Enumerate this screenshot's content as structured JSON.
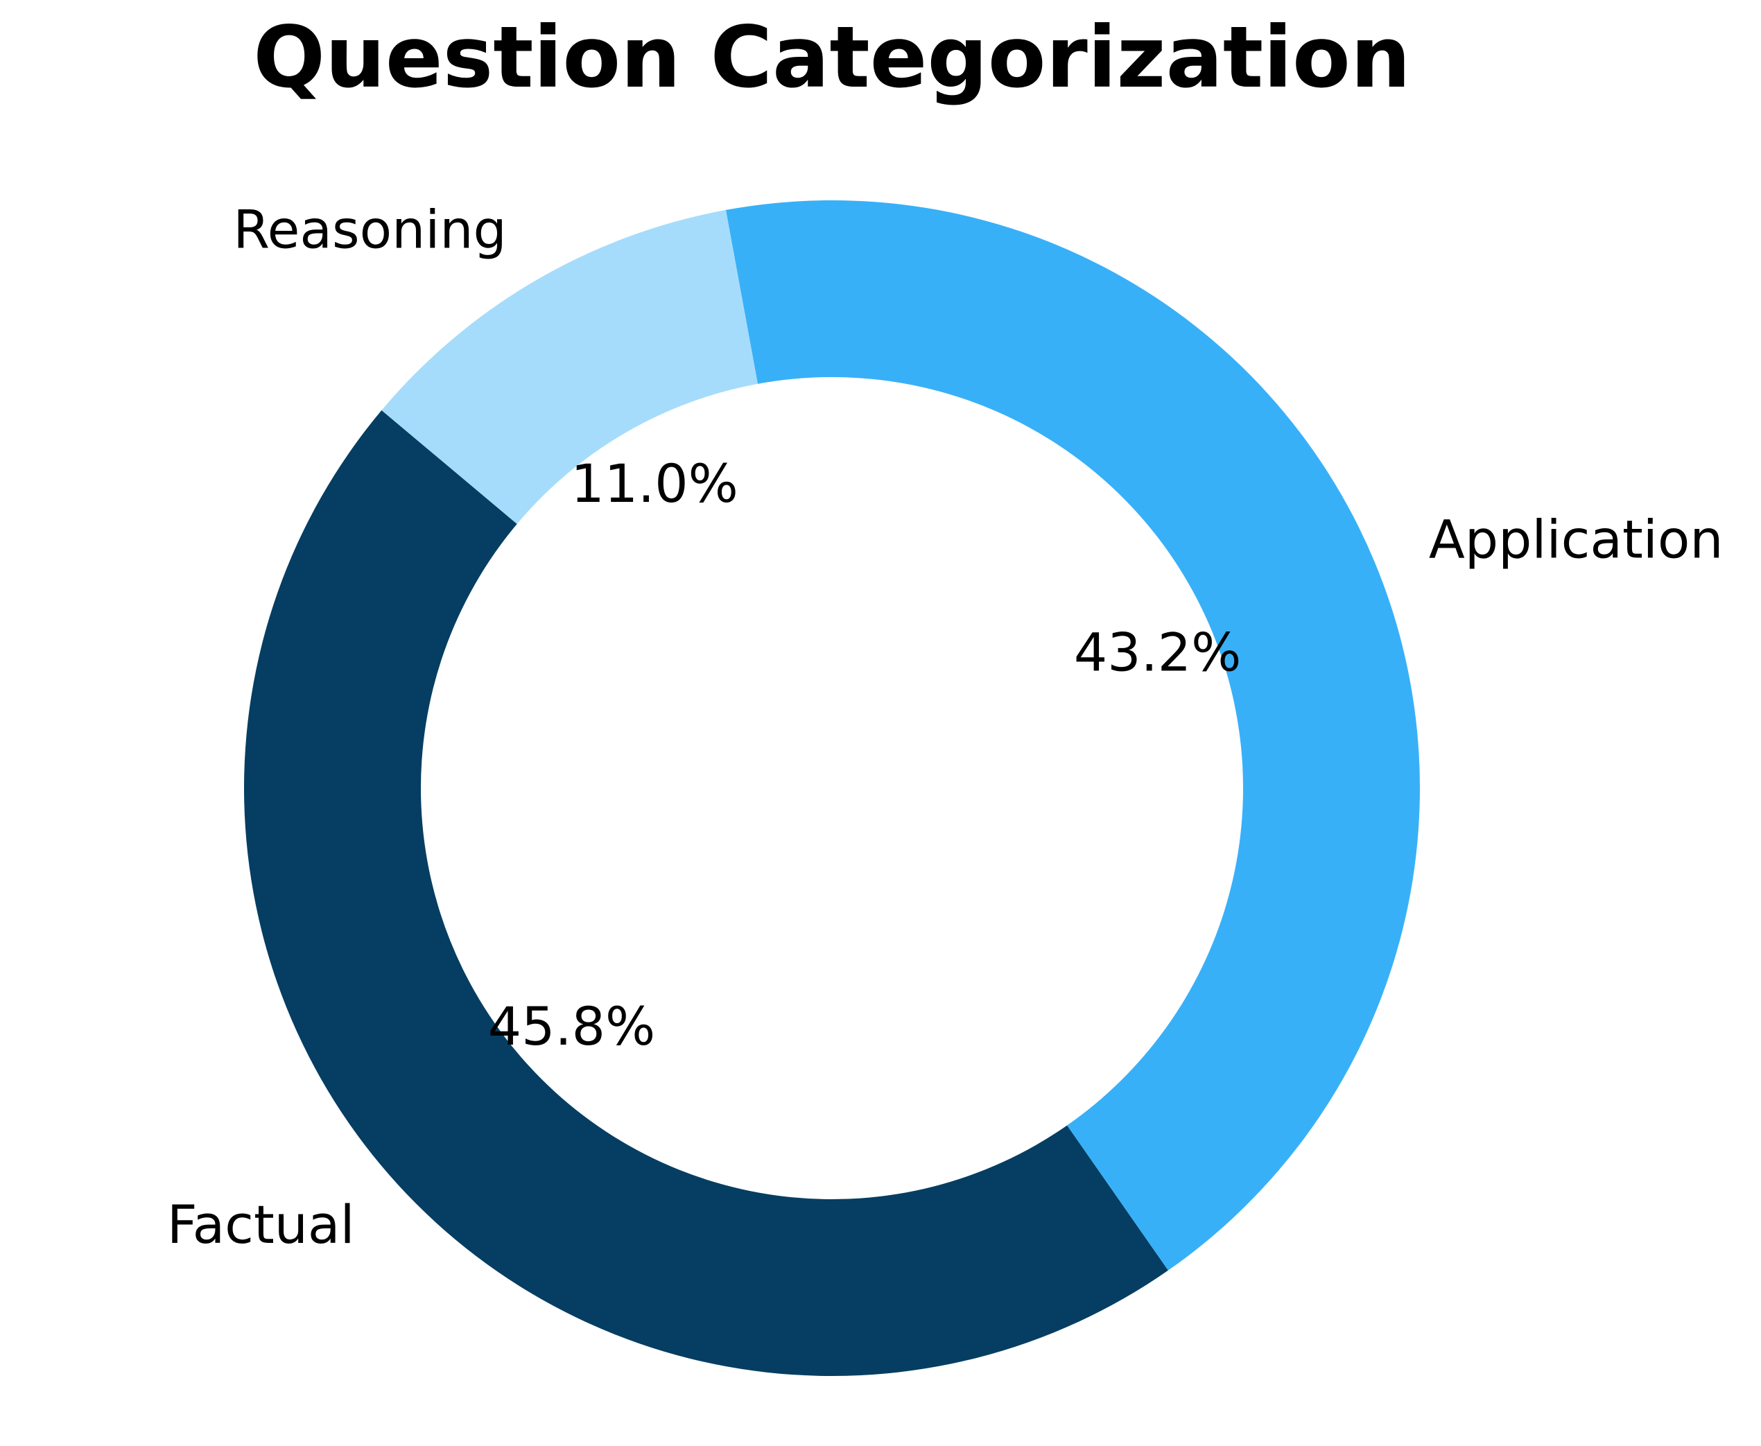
{
  "chart_data": {
    "type": "pie",
    "style": "donut",
    "title": "Question Categorization",
    "categories": [
      "Factual",
      "Application",
      "Reasoning"
    ],
    "values": [
      45.8,
      43.2,
      11.0
    ],
    "value_labels": [
      "45.8%",
      "43.2%",
      "11.0%"
    ],
    "colors": [
      "#053e62",
      "#38b0f8",
      "#a6dcfb"
    ],
    "start_angle_deg": 140,
    "direction": "counterclockwise",
    "legend": "none"
  }
}
